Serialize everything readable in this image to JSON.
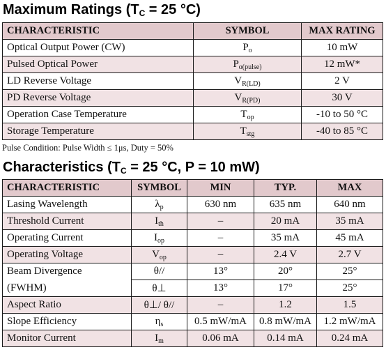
{
  "max_ratings": {
    "title_main": "Maximum Ratings (T",
    "title_sub": "C",
    "title_tail": " = 25 °C)",
    "headers": [
      "CHARACTERISTIC",
      "SYMBOL",
      "MAX RATING"
    ],
    "rows": [
      {
        "characteristic": "Optical Output Power (CW)",
        "sym_main": "P",
        "sym_sub": "o",
        "value": "10 mW"
      },
      {
        "characteristic": "Pulsed Optical Power",
        "sym_main": "P",
        "sym_sub": "o(pulse)",
        "value": "12 mW*"
      },
      {
        "characteristic": "LD Reverse Voltage",
        "sym_main": "V",
        "sym_sub": "R(LD)",
        "value": "2 V"
      },
      {
        "characteristic": "PD Reverse Voltage",
        "sym_main": "V",
        "sym_sub": "R(PD)",
        "value": "30 V"
      },
      {
        "characteristic": "Operation Case Temperature",
        "sym_main": "T",
        "sym_sub": "op",
        "value": "-10 to 50 °C"
      },
      {
        "characteristic": "Storage Temperature",
        "sym_main": "T",
        "sym_sub": "stg",
        "value": "-40 to 85 °C"
      }
    ],
    "note": "Pulse Condition: Pulse Width ≤ 1μs, Duty = 50%"
  },
  "characteristics": {
    "title_main": "Characteristics (T",
    "title_sub": "C",
    "title_tail": " = 25 °C, P = 10 mW)",
    "headers": [
      "CHARACTERISTIC",
      "SYMBOL",
      "MIN",
      "TYP.",
      "MAX"
    ],
    "rows": [
      {
        "characteristic": "Lasing Wavelength",
        "sym_main": "λ",
        "sym_sub": "p",
        "min": "630 nm",
        "typ": "635 nm",
        "max": "640 nm"
      },
      {
        "characteristic": "Threshold Current",
        "sym_main": "I",
        "sym_sub": "th",
        "min": "–",
        "typ": "20 mA",
        "max": "35 mA"
      },
      {
        "characteristic": "Operating Current",
        "sym_main": "I",
        "sym_sub": "op",
        "min": "–",
        "typ": "35 mA",
        "max": "45 mA"
      },
      {
        "characteristic": "Operating Voltage",
        "sym_main": "V",
        "sym_sub": "op",
        "min": "–",
        "typ": "2.4 V",
        "max": "2.7 V"
      },
      {
        "characteristic": "Beam Divergence",
        "sym_main": "θ//",
        "sym_sub": "",
        "min": "13°",
        "typ": "20°",
        "max": "25°"
      },
      {
        "characteristic": "(FWHM)",
        "sym_main": "θ⊥",
        "sym_sub": "",
        "min": "13°",
        "typ": "17°",
        "max": "25°"
      },
      {
        "characteristic": "Aspect Ratio",
        "sym_main": "θ⊥/ θ//",
        "sym_sub": "",
        "min": "–",
        "typ": "1.2",
        "max": "1.5"
      },
      {
        "characteristic": "Slope Efficiency",
        "sym_main": "η",
        "sym_sub": "s",
        "min": "0.5 mW/mA",
        "typ": "0.8 mW/mA",
        "max": "1.2 mW/mA"
      },
      {
        "characteristic": "Monitor Current",
        "sym_main": "I",
        "sym_sub": "m",
        "min": "0.06 mA",
        "typ": "0.14 mA",
        "max": "0.24 mA"
      }
    ]
  }
}
